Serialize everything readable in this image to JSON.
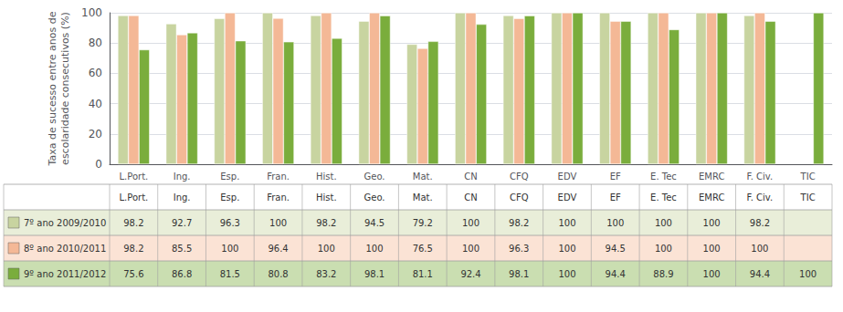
{
  "chart_data": {
    "type": "bar",
    "categories": [
      "L.Port.",
      "Ing.",
      "Esp.",
      "Fran.",
      "Hist.",
      "Geo.",
      "Mat.",
      "CN",
      "CFQ",
      "EDV",
      "EF",
      "E. Tec",
      "EMRC",
      "F. Civ.",
      "TIC"
    ],
    "series": [
      {
        "name": "7º ano 2009/2010",
        "color": "#c8d4a0",
        "values": [
          98.2,
          92.7,
          96.3,
          100,
          98.2,
          94.5,
          79.2,
          100,
          98.2,
          100,
          100,
          100,
          100,
          98.2,
          null
        ]
      },
      {
        "name": "8º ano 2010/2011",
        "color": "#f4b896",
        "values": [
          98.2,
          85.5,
          100,
          96.4,
          100,
          100,
          76.5,
          100,
          96.3,
          100,
          94.5,
          100,
          100,
          100,
          null
        ]
      },
      {
        "name": "9º ano 2011/2012",
        "color": "#7aad3c",
        "values": [
          75.6,
          86.8,
          81.5,
          80.8,
          83.2,
          98.1,
          81.1,
          92.4,
          98.1,
          100,
          94.4,
          88.9,
          100,
          94.4,
          100
        ]
      }
    ],
    "ylabel": "Taxa de sucesso entre anos de\nescolaridade consecutivos (%)",
    "ylim": [
      0,
      100
    ],
    "yticks": [
      0,
      20,
      40,
      60,
      80,
      100
    ],
    "grid": true,
    "legend": "bottom"
  }
}
